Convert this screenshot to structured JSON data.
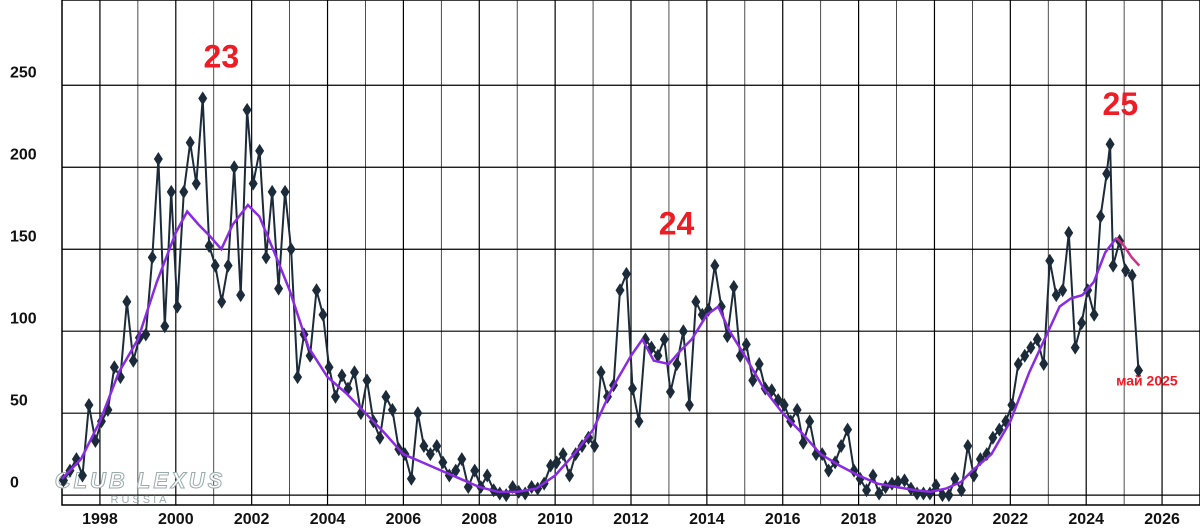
{
  "chart_data": {
    "type": "line",
    "xlim": [
      1997,
      2027
    ],
    "ylim": [
      -6,
      302
    ],
    "xticks": [
      1998,
      2000,
      2002,
      2004,
      2006,
      2008,
      2010,
      2012,
      2014,
      2016,
      2018,
      2020,
      2022,
      2024,
      2026
    ],
    "yticks": [
      0,
      50,
      100,
      150,
      200,
      250
    ],
    "grid": true,
    "watermark": "CLUB LEXUS",
    "watermark_sub": "RUSSIA",
    "annotations": [
      {
        "text": "23",
        "x": 2001.2,
        "y": 266
      },
      {
        "text": "24",
        "x": 2013.2,
        "y": 164
      },
      {
        "text": "25",
        "x": 2024.9,
        "y": 237
      },
      {
        "text": "май 2025",
        "x": 2025.6,
        "y": 69
      }
    ],
    "series": [
      {
        "color": "#1c2b3a",
        "marker": "diamond",
        "x": [
          1997.04,
          1997.21,
          1997.38,
          1997.54,
          1997.71,
          1997.88,
          1998.04,
          1998.21,
          1998.38,
          1998.54,
          1998.71,
          1998.88,
          1999.04,
          1999.21,
          1999.38,
          1999.54,
          1999.71,
          1999.88,
          2000.04,
          2000.21,
          2000.38,
          2000.54,
          2000.71,
          2000.88,
          2001.04,
          2001.21,
          2001.38,
          2001.54,
          2001.71,
          2001.88,
          2002.04,
          2002.21,
          2002.38,
          2002.54,
          2002.71,
          2002.88,
          2003.04,
          2003.21,
          2003.38,
          2003.54,
          2003.71,
          2003.88,
          2004.04,
          2004.21,
          2004.38,
          2004.54,
          2004.71,
          2004.88,
          2005.04,
          2005.21,
          2005.38,
          2005.54,
          2005.71,
          2005.88,
          2006.04,
          2006.21,
          2006.38,
          2006.54,
          2006.71,
          2006.88,
          2007.04,
          2007.21,
          2007.38,
          2007.54,
          2007.71,
          2007.88,
          2008.04,
          2008.21,
          2008.38,
          2008.54,
          2008.71,
          2008.88,
          2009.04,
          2009.21,
          2009.38,
          2009.54,
          2009.71,
          2009.88,
          2010.04,
          2010.21,
          2010.38,
          2010.54,
          2010.71,
          2010.88,
          2011.04,
          2011.21,
          2011.38,
          2011.54,
          2011.71,
          2011.88,
          2012.04,
          2012.21,
          2012.38,
          2012.54,
          2012.71,
          2012.88,
          2013.04,
          2013.21,
          2013.38,
          2013.54,
          2013.71,
          2013.88,
          2014.04,
          2014.21,
          2014.38,
          2014.54,
          2014.71,
          2014.88,
          2015.04,
          2015.21,
          2015.38,
          2015.54,
          2015.71,
          2015.88,
          2016.04,
          2016.21,
          2016.38,
          2016.54,
          2016.71,
          2016.88,
          2017.04,
          2017.21,
          2017.38,
          2017.54,
          2017.71,
          2017.88,
          2018.04,
          2018.21,
          2018.38,
          2018.54,
          2018.71,
          2018.88,
          2019.04,
          2019.21,
          2019.38,
          2019.54,
          2019.71,
          2019.88,
          2020.04,
          2020.21,
          2020.38,
          2020.54,
          2020.71,
          2020.88,
          2021.04,
          2021.21,
          2021.38,
          2021.54,
          2021.71,
          2021.88,
          2022.04,
          2022.21,
          2022.38,
          2022.54,
          2022.71,
          2022.88,
          2023.04,
          2023.21,
          2023.38,
          2023.54,
          2023.71,
          2023.88,
          2024.04,
          2024.21,
          2024.38,
          2024.54,
          2024.63,
          2024.71,
          2024.88,
          2025.04,
          2025.21,
          2025.38
        ],
        "values": [
          9,
          15,
          22,
          12,
          55,
          33,
          45,
          52,
          78,
          72,
          118,
          82,
          96,
          98,
          145,
          205,
          103,
          185,
          115,
          185,
          215,
          190,
          242,
          152,
          140,
          118,
          140,
          200,
          122,
          235,
          190,
          210,
          145,
          185,
          126,
          185,
          150,
          72,
          98,
          85,
          125,
          110,
          78,
          60,
          73,
          65,
          75,
          50,
          70,
          45,
          35,
          60,
          52,
          28,
          25,
          10,
          50,
          30,
          25,
          30,
          20,
          12,
          15,
          22,
          5,
          15,
          5,
          12,
          3,
          1,
          0,
          5,
          2,
          1,
          5,
          4,
          7,
          18,
          20,
          25,
          12,
          25,
          30,
          35,
          30,
          75,
          60,
          67,
          125,
          135,
          65,
          45,
          95,
          90,
          85,
          95,
          63,
          80,
          100,
          55,
          118,
          110,
          113,
          140,
          115,
          97,
          127,
          85,
          92,
          70,
          80,
          65,
          64,
          58,
          55,
          45,
          52,
          32,
          45,
          25,
          25,
          15,
          20,
          30,
          40,
          15,
          10,
          3,
          12,
          1,
          5,
          7,
          8,
          9,
          4,
          1,
          1,
          1,
          6,
          0,
          0,
          10,
          3,
          30,
          12,
          22,
          25,
          35,
          40,
          45,
          55,
          80,
          85,
          90,
          95,
          80,
          143,
          122,
          125,
          160,
          90,
          105,
          125,
          110,
          170,
          196,
          214,
          140,
          155,
          137,
          134,
          76
        ]
      },
      {
        "color": "#8a2be2",
        "x": [
          1997.0,
          1997.5,
          1998.0,
          1998.5,
          1999.0,
          1999.5,
          2000.0,
          2000.3,
          2000.6,
          2000.9,
          2001.2,
          2001.5,
          2001.9,
          2002.2,
          2002.6,
          2003.0,
          2003.5,
          2004.0,
          2004.5,
          2005.0,
          2005.5,
          2006.0,
          2006.5,
          2007.0,
          2007.5,
          2008.0,
          2008.5,
          2009.0,
          2009.5,
          2010.0,
          2010.5,
          2011.0,
          2011.5,
          2012.0,
          2012.3,
          2012.6,
          2013.0,
          2013.3,
          2013.6,
          2014.0,
          2014.3,
          2014.6,
          2015.0,
          2015.5,
          2016.0,
          2016.5,
          2017.0,
          2017.5,
          2018.0,
          2018.5,
          2019.0,
          2019.5,
          2019.9,
          2020.3,
          2020.7,
          2021.0,
          2021.5,
          2022.0,
          2022.5,
          2023.0,
          2023.3,
          2023.6,
          2023.9,
          2024.2,
          2024.5,
          2024.8
        ],
        "values": [
          10,
          22,
          45,
          75,
          95,
          130,
          160,
          173,
          165,
          158,
          150,
          165,
          177,
          170,
          148,
          125,
          90,
          72,
          62,
          50,
          38,
          25,
          20,
          15,
          10,
          5,
          2,
          2,
          4,
          12,
          25,
          40,
          65,
          85,
          95,
          82,
          80,
          88,
          95,
          110,
          115,
          100,
          85,
          65,
          50,
          38,
          25,
          18,
          12,
          7,
          5,
          3,
          2,
          4,
          8,
          15,
          25,
          45,
          75,
          100,
          115,
          120,
          122,
          130,
          148,
          157
        ]
      },
      {
        "color": "#d0308a",
        "x": [
          2024.8,
          2025.0,
          2025.2,
          2025.4
        ],
        "values": [
          157,
          152,
          145,
          140
        ]
      }
    ]
  }
}
